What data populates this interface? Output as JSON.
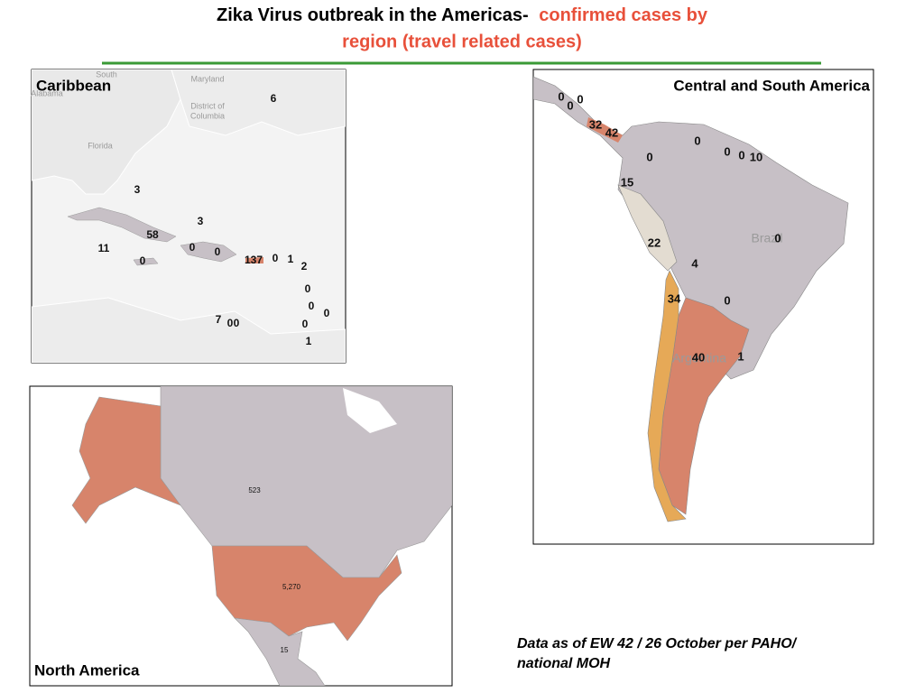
{
  "title": {
    "line1_black": "Zika Virus outbreak in the Americas-",
    "line1_red": "confirmed cases by",
    "line2_red": "region (travel related cases)"
  },
  "caribbean": {
    "title": "Caribbean",
    "place_names": [
      "South",
      "Alabama",
      "Maryland",
      "District of",
      "Columbia",
      "Florida"
    ],
    "counts": [
      6,
      3,
      3,
      58,
      11,
      0,
      0,
      0,
      137,
      0,
      1,
      2,
      0,
      0,
      0,
      0,
      7,
      0,
      0,
      1
    ]
  },
  "central_south_america": {
    "title": "Central and South America",
    "place_names": [
      "Brazil",
      "Argentina"
    ],
    "counts": [
      0,
      0,
      0,
      32,
      42,
      0,
      0,
      0,
      0,
      10,
      15,
      22,
      0,
      4,
      34,
      0,
      40,
      1
    ]
  },
  "north_america": {
    "title": "North America",
    "counts": [
      523,
      {
        "value": 5270,
        "label": "5,270"
      },
      15
    ]
  },
  "note": {
    "line1": "Data as of EW 42 / 26 October per PAHO/",
    "line2": "national MOH"
  }
}
